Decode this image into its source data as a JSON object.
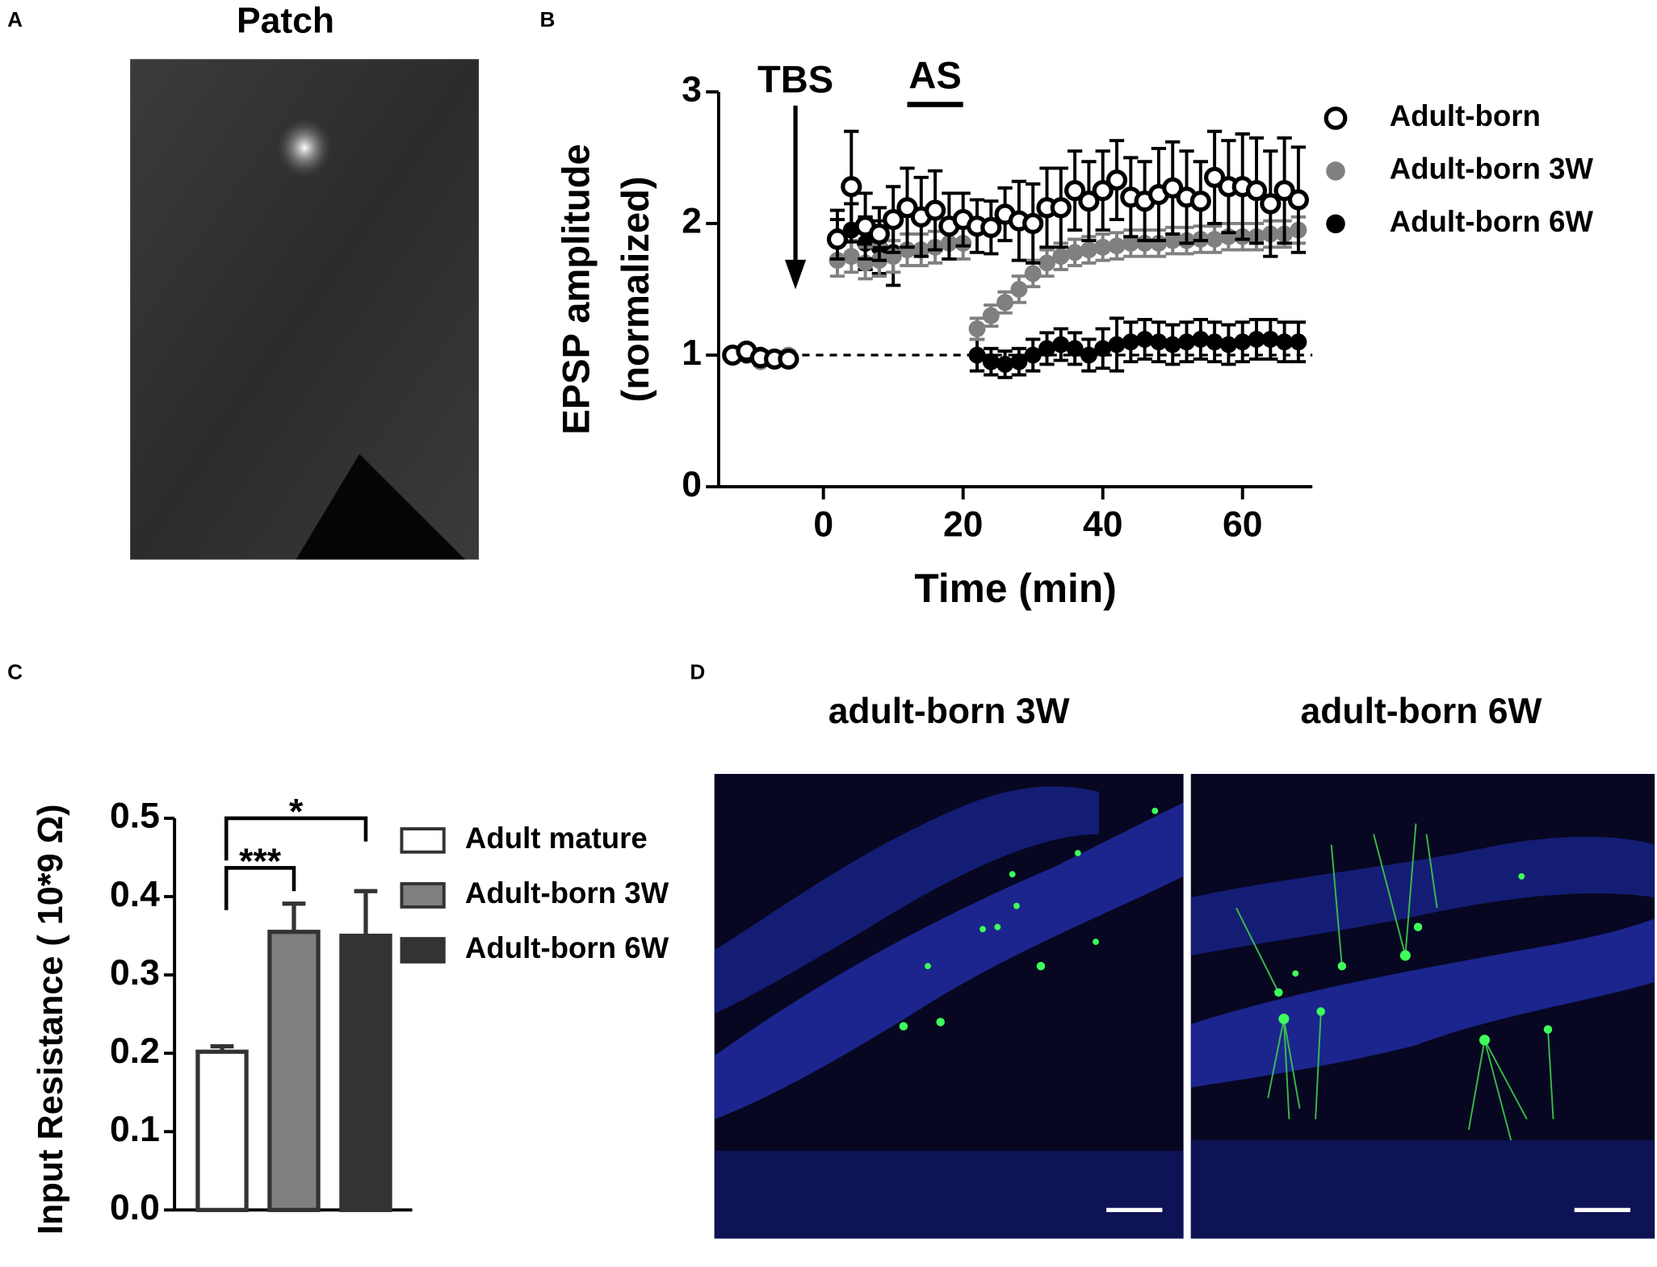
{
  "panel_labels": [
    "A",
    "B",
    "C",
    "D"
  ],
  "image_titles": [
    "Patch",
    "adult-born 3W",
    "adult-born 6W"
  ],
  "chart_data": [
    {
      "type": "scatter",
      "x": [
        -13,
        -11,
        -9,
        -7,
        -5,
        2,
        4,
        6,
        8,
        10,
        12,
        14,
        16,
        18,
        20,
        22,
        24,
        26,
        28,
        30,
        32,
        34,
        36,
        38,
        40,
        42,
        44,
        46,
        48,
        50,
        52,
        54,
        56,
        58,
        60,
        62,
        64,
        66,
        68
      ],
      "xlim": [
        -15,
        70
      ],
      "xticks": [
        0,
        20,
        40,
        60
      ],
      "ylim": [
        0,
        3
      ],
      "yticks": [
        0,
        1,
        2,
        3
      ],
      "x_label": "Time (min)",
      "y_label": [
        "EPSP amplitude",
        "(normalized)"
      ],
      "reference_line": 1,
      "annotations": [
        {
          "text": "TBS",
          "x": -4
        },
        {
          "text": "AS",
          "x": [
            12,
            20
          ]
        }
      ],
      "legend": "right",
      "series": [
        {
          "name": "Adult-born",
          "color": "#ffffff",
          "edgecolor": "#000000",
          "values": [
            1.0,
            1.03,
            0.98,
            0.97,
            0.97,
            1.88,
            2.28,
            1.98,
            1.92,
            2.03,
            2.12,
            2.05,
            2.1,
            1.98,
            2.03,
            1.98,
            1.97,
            2.07,
            2.02,
            2.0,
            2.12,
            2.12,
            2.25,
            2.17,
            2.25,
            2.33,
            2.2,
            2.17,
            2.22,
            2.27,
            2.2,
            2.17,
            2.35,
            2.28,
            2.28,
            2.25,
            2.15,
            2.25,
            2.18
          ],
          "errors": [
            0.03,
            0.03,
            0.03,
            0.03,
            0.03,
            0.15,
            0.42,
            0.25,
            0.2,
            0.25,
            0.3,
            0.3,
            0.3,
            0.25,
            0.2,
            0.2,
            0.2,
            0.2,
            0.3,
            0.3,
            0.3,
            0.3,
            0.3,
            0.3,
            0.3,
            0.3,
            0.3,
            0.3,
            0.35,
            0.35,
            0.35,
            0.3,
            0.35,
            0.35,
            0.4,
            0.4,
            0.4,
            0.4,
            0.4
          ]
        },
        {
          "name": "Adult-born 3W",
          "color": "#808080",
          "values": [
            1.0,
            1.02,
            0.95,
            0.98,
            1.0,
            1.72,
            1.75,
            1.7,
            1.72,
            1.75,
            1.8,
            1.8,
            1.82,
            1.85,
            1.85,
            1.2,
            1.3,
            1.4,
            1.5,
            1.62,
            1.7,
            1.75,
            1.78,
            1.8,
            1.82,
            1.83,
            1.85,
            1.85,
            1.85,
            1.87,
            1.87,
            1.88,
            1.88,
            1.9,
            1.9,
            1.9,
            1.92,
            1.92,
            1.95
          ],
          "errors": [
            0.03,
            0.03,
            0.03,
            0.03,
            0.03,
            0.12,
            0.12,
            0.12,
            0.12,
            0.12,
            0.12,
            0.12,
            0.12,
            0.12,
            0.12,
            0.08,
            0.08,
            0.08,
            0.1,
            0.1,
            0.1,
            0.1,
            0.1,
            0.1,
            0.1,
            0.1,
            0.1,
            0.1,
            0.1,
            0.1,
            0.1,
            0.1,
            0.1,
            0.1,
            0.1,
            0.1,
            0.1,
            0.1,
            0.1
          ]
        },
        {
          "name": "Adult-born 6W",
          "color": "#000000",
          "values": [
            1.0,
            1.0,
            1.0,
            0.98,
            0.98,
            1.9,
            1.95,
            1.85,
            1.82,
            1.78,
            null,
            null,
            null,
            null,
            null,
            1.0,
            0.95,
            0.93,
            0.95,
            1.0,
            1.05,
            1.08,
            1.05,
            1.0,
            1.05,
            1.08,
            1.1,
            1.12,
            1.1,
            1.08,
            1.1,
            1.12,
            1.1,
            1.08,
            1.1,
            1.12,
            1.12,
            1.1,
            1.1
          ],
          "errors": [
            0.03,
            0.03,
            0.03,
            0.03,
            0.03,
            0.2,
            0.2,
            0.2,
            0.2,
            0.25,
            null,
            null,
            null,
            null,
            null,
            0.12,
            0.1,
            0.1,
            0.1,
            0.12,
            0.12,
            0.12,
            0.12,
            0.12,
            0.15,
            0.2,
            0.15,
            0.15,
            0.15,
            0.15,
            0.15,
            0.15,
            0.15,
            0.15,
            0.15,
            0.15,
            0.15,
            0.15,
            0.15
          ]
        }
      ]
    },
    {
      "type": "bar",
      "ylim": [
        0,
        0.5
      ],
      "yticks": [
        {
          "value": 0,
          "label": "0.0"
        },
        0.1,
        0.2,
        0.3,
        0.4,
        0.5
      ],
      "y_label": "Input Resistance ( 10*9 Ω)",
      "legend": "right",
      "series": [
        {
          "name": "Adult mature",
          "color": "#ffffff",
          "values": [
            0.202
          ],
          "errors": [
            0.007
          ]
        },
        {
          "name": "Adult-born 3W",
          "color": "#808080",
          "values": [
            0.355
          ],
          "errors": [
            0.036
          ]
        },
        {
          "name": "Adult-born 6W",
          "color": "#333333",
          "values": [
            0.35
          ],
          "errors": [
            0.057
          ]
        }
      ],
      "significance": [
        {
          "label": "***",
          "groups": [
            0,
            1
          ]
        },
        {
          "label": "*",
          "groups": [
            0,
            2
          ]
        }
      ]
    }
  ]
}
